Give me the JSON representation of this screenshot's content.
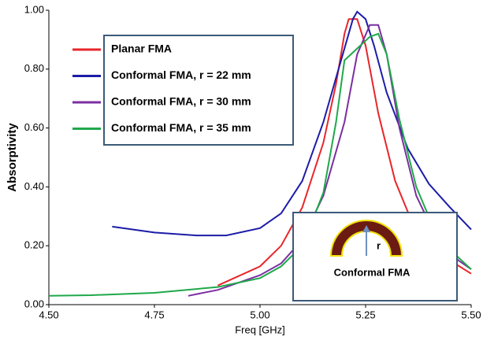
{
  "chart_data": {
    "type": "line",
    "y_label": "Absorptivity",
    "x_label": "Freq [GHz]",
    "xlim": [
      4.5,
      5.5
    ],
    "ylim": [
      0,
      1
    ],
    "xticks": [
      {
        "value": 4.5,
        "label": "4.50"
      },
      {
        "value": 4.75,
        "label": "4.75"
      },
      {
        "value": 5,
        "label": "5.00"
      },
      {
        "value": 5.25,
        "label": "5.25"
      },
      {
        "value": 5.5,
        "label": "5.50"
      }
    ],
    "yticks": [
      {
        "value": 0,
        "label": "0.00"
      },
      {
        "value": 0.2,
        "label": "0.20"
      },
      {
        "value": 0.4,
        "label": "0.40"
      },
      {
        "value": 0.6,
        "label": "0.60"
      },
      {
        "value": 0.8,
        "label": "0.80"
      },
      {
        "value": 1,
        "label": "1.00"
      }
    ],
    "series": [
      {
        "name": "Planar FMA",
        "color": "#e8262a",
        "x": [
          4.9,
          5.0,
          5.05,
          5.1,
          5.15,
          5.18,
          5.2,
          5.21,
          5.23,
          5.25,
          5.28,
          5.32,
          5.36,
          5.4,
          5.45,
          5.5
        ],
        "values": [
          0.065,
          0.13,
          0.2,
          0.33,
          0.55,
          0.75,
          0.92,
          0.97,
          0.97,
          0.88,
          0.65,
          0.42,
          0.28,
          0.2,
          0.15,
          0.105
        ]
      },
      {
        "name": "Conformal FMA, r = 22 mm",
        "color": "#1c1ca8",
        "x": [
          4.65,
          4.75,
          4.85,
          4.92,
          5.0,
          5.05,
          5.1,
          5.15,
          5.19,
          5.22,
          5.23,
          5.25,
          5.27,
          5.3,
          5.35,
          5.4,
          5.45,
          5.5
        ],
        "values": [
          0.265,
          0.245,
          0.235,
          0.235,
          0.26,
          0.31,
          0.42,
          0.62,
          0.82,
          0.97,
          0.995,
          0.97,
          0.88,
          0.72,
          0.53,
          0.41,
          0.33,
          0.255
        ]
      },
      {
        "name": "Conformal FMA, r = 30 mm",
        "color": "#7b2fa0",
        "x": [
          4.83,
          4.9,
          5.0,
          5.05,
          5.1,
          5.15,
          5.2,
          5.23,
          5.26,
          5.28,
          5.3,
          5.33,
          5.37,
          5.42,
          5.47,
          5.5
        ],
        "values": [
          0.03,
          0.05,
          0.1,
          0.14,
          0.22,
          0.37,
          0.62,
          0.85,
          0.95,
          0.95,
          0.85,
          0.6,
          0.37,
          0.22,
          0.15,
          0.12
        ]
      },
      {
        "name": "Conformal FMA, r = 35 mm",
        "color": "#1fa84a",
        "x": [
          4.5,
          4.6,
          4.75,
          4.9,
          5.0,
          5.05,
          5.1,
          5.15,
          5.18,
          5.2,
          5.23,
          5.26,
          5.28,
          5.3,
          5.33,
          5.37,
          5.42,
          5.47,
          5.5
        ],
        "values": [
          0.03,
          0.032,
          0.04,
          0.06,
          0.09,
          0.13,
          0.2,
          0.38,
          0.62,
          0.83,
          0.87,
          0.91,
          0.92,
          0.85,
          0.63,
          0.4,
          0.23,
          0.16,
          0.12
        ]
      }
    ],
    "inset": {
      "symbol": "r",
      "caption": "Conformal FMA"
    }
  }
}
